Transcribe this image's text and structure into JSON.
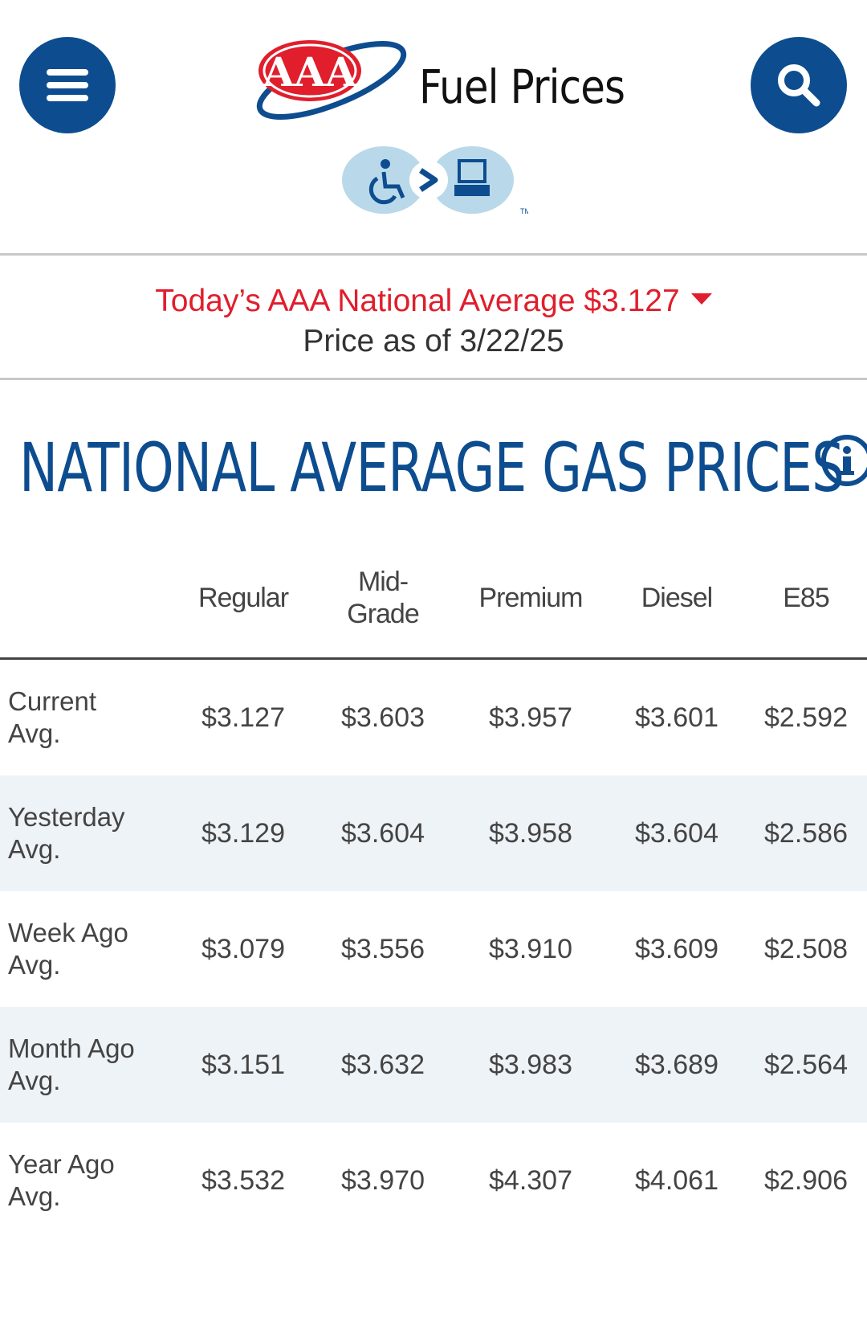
{
  "header": {
    "title": "Fuel Prices",
    "logo_text": "AAA",
    "menu_icon": "hamburger-menu-icon",
    "search_icon": "search-icon",
    "accessibility_icon": "accessibility-widget-icon"
  },
  "banner": {
    "national_average": "Today’s AAA National Average $3.127",
    "trend_icon": "down-triangle-icon",
    "price_as_of": "Price as of 3/22/25"
  },
  "section": {
    "title": "NATIONAL AVERAGE GAS PRICES",
    "info_icon": "info-icon"
  },
  "table": {
    "columns": [
      "Regular",
      "Mid-Grade",
      "Premium",
      "Diesel",
      "E85"
    ],
    "rows": [
      {
        "label": "Current Avg.",
        "values": [
          "$3.127",
          "$3.603",
          "$3.957",
          "$3.601",
          "$2.592"
        ]
      },
      {
        "label": "Yesterday Avg.",
        "values": [
          "$3.129",
          "$3.604",
          "$3.958",
          "$3.604",
          "$2.586"
        ]
      },
      {
        "label": "Week Ago Avg.",
        "values": [
          "$3.079",
          "$3.556",
          "$3.910",
          "$3.609",
          "$2.508"
        ]
      },
      {
        "label": "Month Ago Avg.",
        "values": [
          "$3.151",
          "$3.632",
          "$3.983",
          "$3.689",
          "$2.564"
        ]
      },
      {
        "label": "Year Ago Avg.",
        "values": [
          "$3.532",
          "$3.970",
          "$4.307",
          "$4.061",
          "$2.906"
        ]
      }
    ]
  },
  "colors": {
    "brand_blue": "#0d4d8f",
    "alert_red": "#e01e2c",
    "stripe": "#eef3f8"
  }
}
